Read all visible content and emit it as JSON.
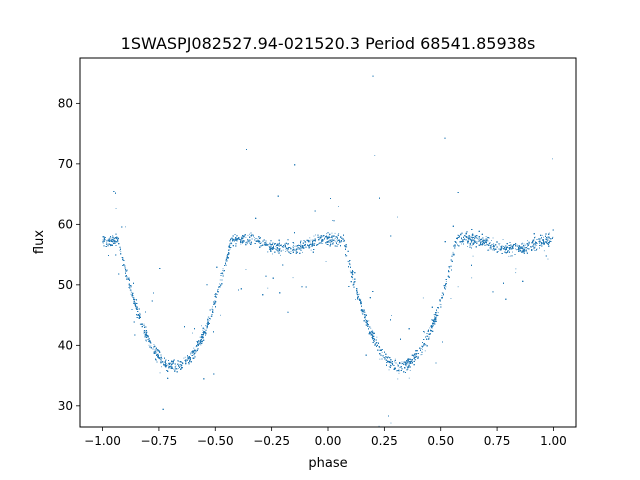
{
  "chart_data": {
    "type": "scatter",
    "title": "1SWASPJ082527.94-021520.3 Period 68541.85938s",
    "xlabel": "phase",
    "ylabel": "flux",
    "xlim": [
      -1.1,
      1.1
    ],
    "ylim": [
      26.5,
      87.5
    ],
    "xticks": [
      -1.0,
      -0.75,
      -0.5,
      -0.25,
      0.0,
      0.25,
      0.5,
      0.75,
      1.0
    ],
    "xtick_labels": [
      "−1.00",
      "−0.75",
      "−0.50",
      "−0.25",
      "0.00",
      "0.25",
      "0.50",
      "0.75",
      "1.00"
    ],
    "yticks": [
      30,
      40,
      50,
      60,
      70,
      80
    ],
    "ytick_labels": [
      "30",
      "40",
      "50",
      "60",
      "70",
      "80"
    ],
    "grid": false,
    "legend": "none",
    "marker_color": "#1f77b4",
    "series": [
      {
        "x_range": [
          -1.0,
          1.0
        ],
        "baseline_flux": 57.5,
        "primary_eclipse": {
          "phase": [
            -0.68,
            0.32
          ],
          "minimum_flux": 36.5,
          "half_width_phase": 0.25
        },
        "secondary_eclipse": {
          "phase": [
            -0.18,
            0.82
          ],
          "minimum_flux": 56.0,
          "half_width_phase": 0.15
        },
        "scatter_outlier_range": [
          29,
          86
        ],
        "n_points": 12000
      }
    ]
  }
}
